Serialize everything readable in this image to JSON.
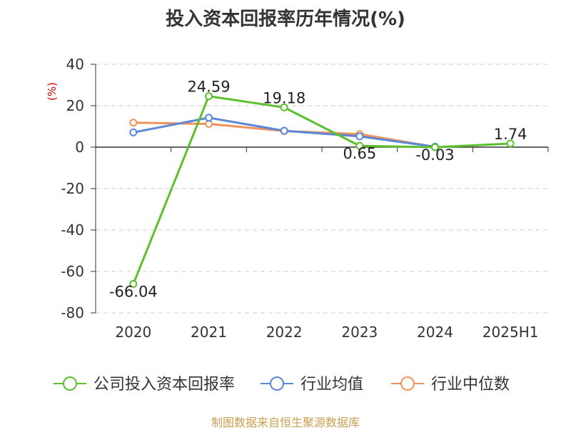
{
  "title": "投入资本回报率历年情况(%)",
  "source": "制图数据来自恒生聚源数据库",
  "chart_data": {
    "type": "line",
    "title": "投入资本回报率历年情况(%)",
    "ylabel": "(%)",
    "xlabel": "",
    "categories": [
      "2020",
      "2021",
      "2022",
      "2023",
      "2024",
      "2025H1"
    ],
    "ylim": [
      -80,
      40
    ],
    "yticks": [
      -80,
      -60,
      -40,
      -20,
      0,
      20,
      40
    ],
    "grid": true,
    "legend_position": "bottom",
    "series": [
      {
        "name": "公司投入资本回报率",
        "color": "#5cc02e",
        "values": [
          -66.04,
          24.59,
          19.18,
          0.65,
          -0.03,
          1.74
        ],
        "labels": [
          "-66.04",
          "24.59",
          "19.18",
          "0.65",
          "-0.03",
          "1.74"
        ]
      },
      {
        "name": "行业均值",
        "color": "#5b87d8",
        "values": [
          7.1,
          14.2,
          7.9,
          5.2,
          0.2,
          null
        ]
      },
      {
        "name": "行业中位数",
        "color": "#f0925a",
        "values": [
          11.8,
          11.2,
          7.8,
          6.3,
          0.1,
          null
        ]
      }
    ]
  }
}
